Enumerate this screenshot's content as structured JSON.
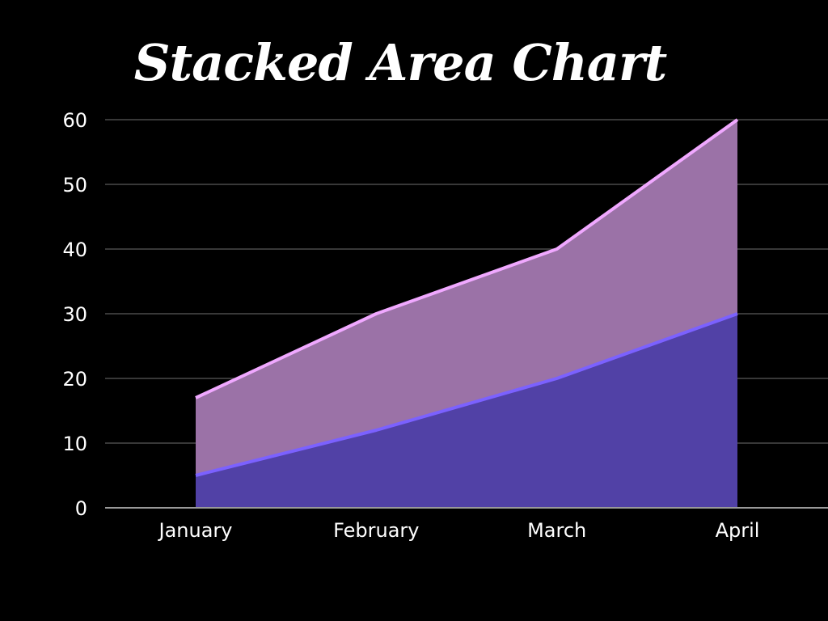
{
  "chart_data": {
    "type": "area",
    "stacked": true,
    "title": "Stacked Area Chart",
    "xlabel": "",
    "ylabel": "",
    "categories": [
      "January",
      "February",
      "March",
      "April"
    ],
    "series": [
      {
        "values": [
          5,
          12,
          20,
          30
        ],
        "line_color": "#7b61ff",
        "fill_color": "#5141a6"
      },
      {
        "values": [
          12,
          18,
          20,
          30
        ],
        "line_color": "#f0a8ff",
        "fill_color": "#9b72a7"
      }
    ],
    "ylim": [
      0,
      60
    ],
    "yticks": [
      0,
      10,
      20,
      30,
      40,
      50,
      60
    ],
    "grid": true,
    "legend": "none",
    "colors": {
      "background": "#000000",
      "gridline": "#4a4a4a",
      "axis_line": "#9a9a9a",
      "text": "#ffffff"
    }
  }
}
